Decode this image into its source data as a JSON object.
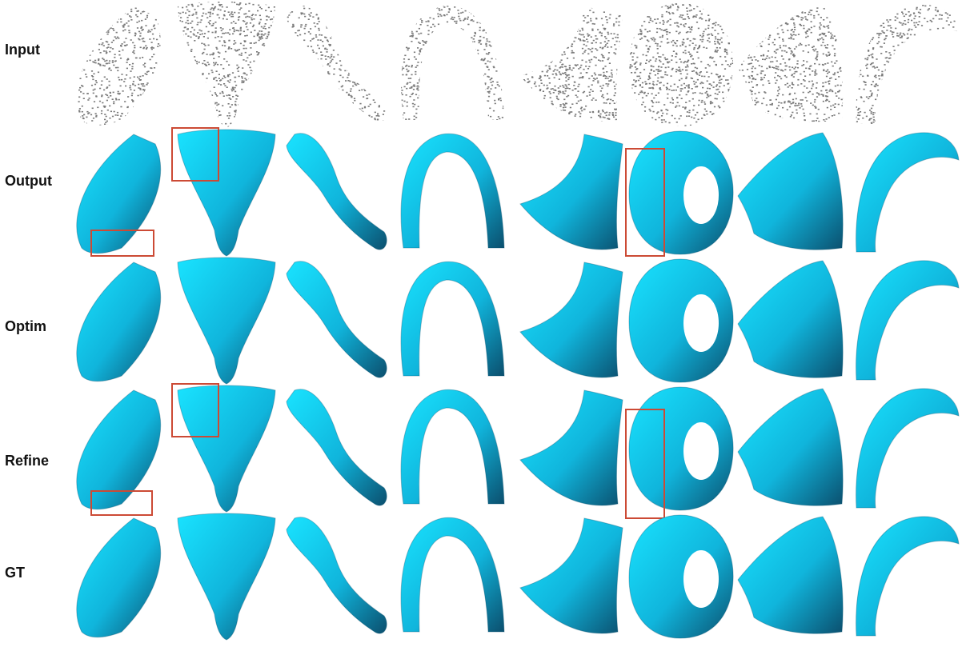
{
  "figure": {
    "rows": [
      {
        "label": "Input",
        "kind": "points"
      },
      {
        "label": "Output",
        "kind": "mesh"
      },
      {
        "label": "Optim",
        "kind": "mesh"
      },
      {
        "label": "Refine",
        "kind": "mesh"
      },
      {
        "label": "GT",
        "kind": "mesh"
      }
    ],
    "columns": 8,
    "colors": {
      "point": "#7a7a7a",
      "mesh_light": "#19e3ff",
      "mesh_mid": "#10b5dc",
      "mesh_dark": "#0b4f6e",
      "highlight_box": "#cc4a35"
    },
    "shape_icons": [
      "saddle-sheet-icon",
      "funnel-icon",
      "s-tube-icon",
      "arch-tube-icon",
      "curved-patch-icon",
      "ring-disc-icon",
      "dome-patch-icon",
      "thin-arch-icon"
    ]
  }
}
